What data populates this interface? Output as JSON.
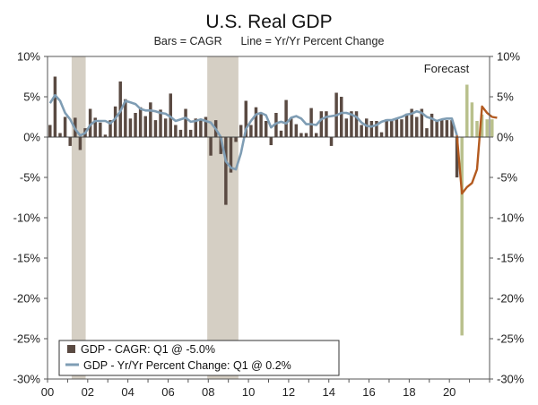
{
  "chart_data": {
    "type": "bar",
    "title": "U.S. Real GDP",
    "subtitle": "Bars = CAGR      Line = Yr/Yr Percent Change",
    "annotation": "Forecast",
    "xlabel": "",
    "ylabel": "",
    "xlim": [
      2000.0,
      2022.0
    ],
    "ylim": [
      -30,
      10
    ],
    "y_ticks": [
      10,
      5,
      0,
      -5,
      -10,
      -15,
      -20,
      -25,
      -30
    ],
    "y_tick_labels": [
      "10%",
      "5%",
      "0%",
      "-5%",
      "-10%",
      "-15%",
      "-20%",
      "-25%",
      "-30%"
    ],
    "x_tick_labels": [
      "00",
      "02",
      "04",
      "06",
      "08",
      "10",
      "12",
      "14",
      "16",
      "18",
      "20"
    ],
    "x_tick_years": [
      2000,
      2002,
      2004,
      2006,
      2008,
      2010,
      2012,
      2014,
      2016,
      2018,
      2020
    ],
    "recessions": [
      [
        2001.2,
        2001.9
      ],
      [
        2007.95,
        2009.5
      ]
    ],
    "colors": {
      "bars_actual": "#5a4a42",
      "bars_forecast": "#b9c08c",
      "line_actual": "#7f9db4",
      "line_forecast": "#b35a1f",
      "recession_shade": "#d5cfc4"
    },
    "series": [
      {
        "name": "GDP - CAGR: Q1 @ -5.0%",
        "kind": "bar",
        "start": 2000.0,
        "step": 0.25,
        "forecast_from_index": 82,
        "values": [
          1.5,
          7.5,
          0.5,
          2.5,
          -1.1,
          2.4,
          -1.6,
          1.1,
          3.5,
          2.4,
          1.8,
          0.3,
          2.1,
          3.8,
          6.9,
          4.7,
          2.3,
          3.0,
          3.7,
          2.6,
          4.3,
          2.1,
          3.4,
          2.3,
          5.4,
          1.5,
          0.9,
          3.5,
          0.9,
          2.3,
          2.2,
          2.5,
          -2.3,
          2.1,
          -2.1,
          -8.4,
          -4.4,
          -0.6,
          1.5,
          4.5,
          1.5,
          3.7,
          3.0,
          2.0,
          -1.0,
          3.0,
          0.8,
          4.6,
          2.3,
          1.6,
          0.5,
          0.5,
          3.6,
          0.5,
          3.2,
          3.2,
          -1.1,
          5.5,
          5.0,
          2.3,
          3.2,
          3.2,
          1.5,
          2.3,
          2.0,
          2.0,
          0.6,
          2.2,
          2.0,
          2.3,
          2.2,
          2.9,
          3.5,
          2.5,
          3.5,
          1.1,
          2.9,
          2.0,
          2.1,
          2.1,
          2.1,
          -5.0,
          -24.6,
          6.5,
          4.3,
          2.0,
          2.8,
          2.2,
          2.2
        ],
        "legend": "GDP - CAGR: Q1 @ -5.0%"
      },
      {
        "name": "GDP - Yr/Yr Percent Change: Q1 @ 0.2%",
        "kind": "line",
        "start": 2000.0,
        "step": 0.25,
        "forecast_from_index": 81,
        "values": [
          4.2,
          5.2,
          4.5,
          3.0,
          2.2,
          1.0,
          0.2,
          0.5,
          1.5,
          2.0,
          2.0,
          2.0,
          1.7,
          2.3,
          3.2,
          4.5,
          4.3,
          4.1,
          3.5,
          3.3,
          3.3,
          3.2,
          3.0,
          2.9,
          2.5,
          2.0,
          2.2,
          2.4,
          1.9,
          2.0,
          2.2,
          2.0,
          1.8,
          1.0,
          0.0,
          -3.0,
          -3.8,
          -4.0,
          -2.0,
          1.0,
          2.0,
          2.8,
          3.0,
          2.7,
          1.2,
          1.7,
          1.9,
          1.7,
          2.4,
          2.6,
          2.3,
          1.6,
          1.6,
          1.5,
          2.2,
          2.5,
          2.6,
          2.7,
          3.0,
          3.0,
          2.8,
          2.5,
          1.8,
          1.4,
          1.3,
          1.5,
          1.9,
          2.1,
          2.1,
          2.3,
          2.5,
          2.8,
          2.9,
          3.2,
          3.0,
          2.5,
          2.3,
          2.0,
          2.2,
          2.3,
          2.3,
          0.2,
          -7.0,
          -6.2,
          -5.7,
          -4.0,
          3.8,
          3.0,
          2.5,
          2.4
        ],
        "legend": "GDP - Yr/Yr Percent Change: Q1 @ 0.2%"
      }
    ],
    "legend_items": [
      "GDP - CAGR: Q1 @ -5.0%",
      "GDP - Yr/Yr Percent Change: Q1 @ 0.2%"
    ],
    "legend_position": "bottom-left"
  }
}
